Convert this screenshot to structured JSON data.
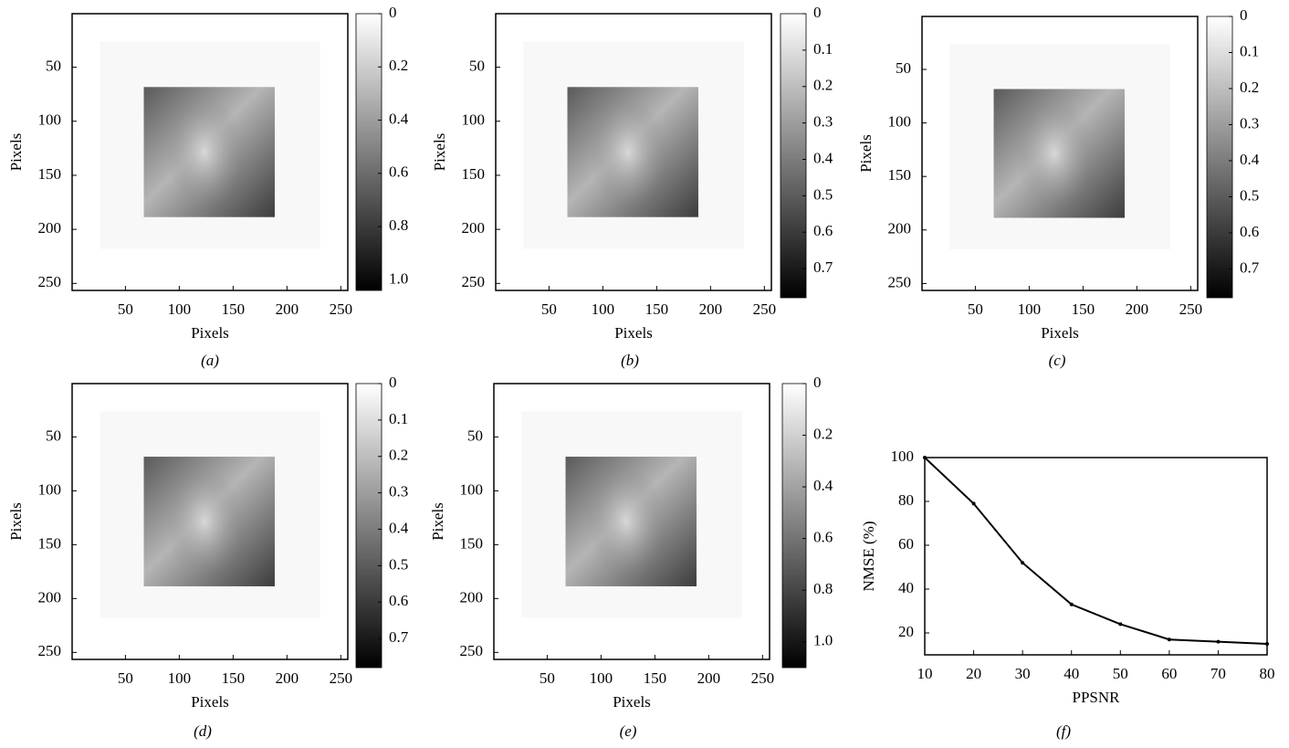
{
  "chart_data": [
    {
      "type": "image",
      "caption": "(a)",
      "xlabel": "Pixels",
      "ylabel": "Pixels",
      "xlim": [
        0.5,
        256.5
      ],
      "ylim": [
        0.5,
        256.5
      ],
      "xticks": [
        50,
        100,
        150,
        200,
        250
      ],
      "yticks": [
        50,
        100,
        150,
        200,
        250
      ],
      "y_reversed": true,
      "colorbar": {
        "clim": [
          0,
          1.04
        ],
        "ticks": [
          0,
          0.2,
          0.4,
          0.6,
          0.8,
          {
            "value": 1,
            "label": "1.0"
          }
        ]
      }
    },
    {
      "type": "image",
      "caption": "(b)",
      "xlabel": "Pixels",
      "ylabel": "Pixels",
      "xlim": [
        0.5,
        256.5
      ],
      "ylim": [
        0.5,
        256.5
      ],
      "xticks": [
        50,
        100,
        150,
        200,
        250
      ],
      "yticks": [
        50,
        100,
        150,
        200,
        250
      ],
      "y_reversed": true,
      "colorbar": {
        "clim": [
          0,
          0.78
        ],
        "ticks": [
          0,
          0.1,
          0.2,
          0.3,
          0.4,
          0.5,
          0.6,
          0.7
        ]
      }
    },
    {
      "type": "image",
      "caption": "(c)",
      "xlabel": "Pixels",
      "ylabel": "Pixels",
      "xlim": [
        0.5,
        256.5
      ],
      "ylim": [
        0.5,
        256.5
      ],
      "xticks": [
        50,
        100,
        150,
        200,
        250
      ],
      "yticks": [
        50,
        100,
        150,
        200,
        250
      ],
      "y_reversed": true,
      "colorbar": {
        "clim": [
          0,
          0.78
        ],
        "ticks": [
          0,
          0.1,
          0.2,
          0.3,
          0.4,
          0.5,
          0.6,
          0.7
        ]
      }
    },
    {
      "type": "image",
      "caption": "(d)",
      "xlabel": "Pixels",
      "ylabel": "Pixels",
      "xlim": [
        0.5,
        256.5
      ],
      "ylim": [
        0.5,
        256.5
      ],
      "xticks": [
        50,
        100,
        150,
        200,
        250
      ],
      "yticks": [
        50,
        100,
        150,
        200,
        250
      ],
      "y_reversed": true,
      "colorbar": {
        "clim": [
          0,
          0.78
        ],
        "ticks": [
          0,
          0.1,
          0.2,
          0.3,
          0.4,
          0.5,
          0.6,
          0.7
        ]
      }
    },
    {
      "type": "image",
      "caption": "(e)",
      "xlabel": "Pixels",
      "ylabel": "Pixels",
      "xlim": [
        0.5,
        256.5
      ],
      "ylim": [
        0.5,
        256.5
      ],
      "xticks": [
        50,
        100,
        150,
        200,
        250
      ],
      "yticks": [
        50,
        100,
        150,
        200,
        250
      ],
      "y_reversed": true,
      "colorbar": {
        "clim": [
          0,
          1.1
        ],
        "ticks": [
          0,
          0.2,
          0.4,
          0.6,
          0.8,
          {
            "value": 1,
            "label": "1.0"
          }
        ]
      }
    },
    {
      "type": "line",
      "caption": "(f)",
      "xlabel": "PPSNR",
      "ylabel": "NMSE (%)",
      "x": [
        10,
        20,
        30,
        40,
        50,
        60,
        70,
        80
      ],
      "values": [
        100,
        79,
        52,
        33,
        24,
        17,
        16,
        15
      ],
      "color": "#000000",
      "xlim": [
        10,
        80
      ],
      "ylim": [
        10,
        100
      ],
      "xticks": [
        10,
        20,
        30,
        40,
        50,
        60,
        70,
        80
      ],
      "yticks": [
        20,
        40,
        60,
        80,
        100
      ]
    }
  ]
}
